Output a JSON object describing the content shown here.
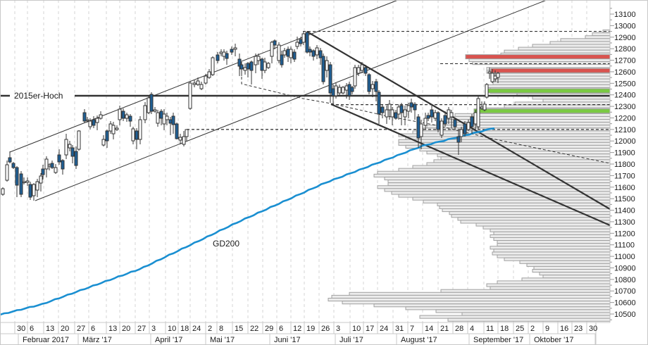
{
  "chart_data": {
    "type": "candlestick",
    "title": "",
    "instrument_hint": "DAX-style index, daily candlesticks Jan–Sep 2017 with volume profile",
    "xlabel": "",
    "ylabel": "",
    "ylim": [
      10450,
      13150
    ],
    "grid": {
      "vertical": "dashed",
      "horizontal": false
    },
    "y_ticks": [
      10500,
      10600,
      10700,
      10800,
      10900,
      11000,
      11100,
      11200,
      11300,
      11400,
      11500,
      11600,
      11700,
      11800,
      11900,
      12000,
      12100,
      12200,
      12300,
      12400,
      12500,
      12600,
      12700,
      12800,
      12900,
      13000,
      13100
    ],
    "x_day_ticks": [
      "30",
      "6",
      "13",
      "20",
      "27",
      "6",
      "13",
      "20",
      "27",
      "3",
      "10",
      "18",
      "24",
      "2",
      "8",
      "15",
      "22",
      "29",
      "6",
      "12",
      "19",
      "26",
      "3",
      "10",
      "17",
      "24",
      "31",
      "7",
      "14",
      "21",
      "28",
      "4",
      "11",
      "18",
      "25",
      "2",
      "9",
      "16",
      "23",
      "30"
    ],
    "x_month_labels": [
      "Februar 2017",
      "März '17",
      "April '17",
      "Mai '17",
      "Juni '17",
      "Juli '17",
      "August '17",
      "September '17",
      "Oktober '17"
    ],
    "annotations": [
      {
        "text": "2015er-Hoch",
        "type": "horizontal_line",
        "price": 12390
      },
      {
        "text": "GD200",
        "type": "moving_average_label"
      }
    ],
    "horizontal_levels": [
      {
        "name": "2015er-Hoch",
        "price": 12390,
        "style": "solid-thick",
        "color": "#333333"
      },
      {
        "name": "resistance-1",
        "price": 12730,
        "style": "thick",
        "color": "#d9534f"
      },
      {
        "name": "resistance-2",
        "price": 12610,
        "style": "thick",
        "color": "#d9534f"
      },
      {
        "name": "support-1",
        "price": 12435,
        "style": "thick",
        "color": "#7ac943"
      },
      {
        "name": "support-2",
        "price": 12260,
        "style": "thick",
        "color": "#7ac943"
      },
      {
        "name": "dashed-high",
        "price": 12950,
        "style": "dashed"
      },
      {
        "name": "dashed-1",
        "price": 12670,
        "style": "dashed"
      },
      {
        "name": "dashed-2",
        "price": 12315,
        "style": "dashed"
      },
      {
        "name": "dashed-3",
        "price": 12100,
        "style": "dashed"
      }
    ],
    "series": [
      {
        "name": "GD200",
        "type": "line",
        "color": "#1a8fd1",
        "points": [
          [
            0,
            10515
          ],
          [
            60,
            10570
          ],
          [
            120,
            10660
          ],
          [
            200,
            10780
          ],
          [
            260,
            10890
          ],
          [
            330,
            11010
          ],
          [
            400,
            11130
          ],
          [
            460,
            11230
          ],
          [
            530,
            11330
          ],
          [
            600,
            11410
          ],
          [
            650,
            11470
          ],
          [
            706,
            11570
          ]
        ]
      },
      {
        "name": "upward-channel-upper",
        "type": "trendline",
        "from": [
          "30 Jan",
          11900
        ],
        "to": [
          "Jul",
          13120
        ]
      },
      {
        "name": "upward-channel-lower",
        "type": "trendline",
        "from": [
          "6 Feb",
          11500
        ],
        "to": [
          "Sep",
          13120
        ]
      },
      {
        "name": "downtrend-upper",
        "type": "trendline",
        "from": [
          "19 Jun",
          12950
        ],
        "to": [
          "30 Okt",
          11430
        ]
      },
      {
        "name": "downtrend-lower",
        "type": "trendline",
        "from": [
          "26 Jun",
          12310
        ],
        "to": [
          "30 Okt",
          11270
        ]
      }
    ],
    "volume_profile": {
      "orientation": "horizontal",
      "anchor": "right",
      "fill": "#ececec",
      "stroke": "#a0a0a0"
    }
  },
  "labels": {
    "hoch": "2015er-Hoch",
    "gd200": "GD200"
  }
}
